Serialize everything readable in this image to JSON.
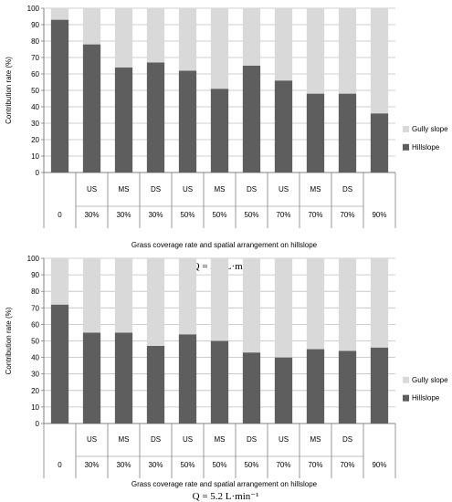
{
  "colors": {
    "hillslope": "#5e5e5e",
    "gully": "#d9d9d9",
    "grid": "#bfbfbf",
    "axis": "#808080"
  },
  "chart_data": [
    {
      "type": "bar",
      "stacked": true,
      "title": "",
      "caption": "Q = 3.2 L·min⁻¹",
      "xlabel": "Grass coverage rate and spatial arrangement on hillslope",
      "ylabel": "Contribution rate (%)",
      "ylim": [
        0,
        100
      ],
      "yticks": [
        "0",
        "10",
        "20",
        "30",
        "40",
        "50",
        "60",
        "70",
        "80",
        "90",
        "100"
      ],
      "grid": true,
      "legend_position": "right",
      "categories_top": [
        "",
        "US",
        "MS",
        "DS",
        "US",
        "MS",
        "DS",
        "US",
        "MS",
        "DS",
        ""
      ],
      "categories_bottom": [
        "0",
        "30%",
        "30%",
        "30%",
        "50%",
        "50%",
        "50%",
        "70%",
        "70%",
        "70%",
        "90%"
      ],
      "series": [
        {
          "name": "Hillslope",
          "values": [
            93,
            78,
            64,
            67,
            62,
            51,
            65,
            56,
            48,
            48,
            36
          ]
        },
        {
          "name": "Gully slope",
          "values": [
            7,
            22,
            36,
            33,
            38,
            49,
            35,
            44,
            52,
            52,
            64
          ]
        }
      ]
    },
    {
      "type": "bar",
      "stacked": true,
      "title": "",
      "caption": "Q = 5.2 L·min⁻¹",
      "xlabel": "Grass coverage rate and spatial arrangement on hillslope",
      "ylabel": "Contribution rate (%)",
      "ylim": [
        0,
        100
      ],
      "yticks": [
        "0",
        "10",
        "20",
        "30",
        "40",
        "50",
        "60",
        "70",
        "80",
        "90",
        "100"
      ],
      "grid": true,
      "legend_position": "right",
      "categories_top": [
        "",
        "US",
        "MS",
        "DS",
        "US",
        "MS",
        "DS",
        "US",
        "MS",
        "DS",
        ""
      ],
      "categories_bottom": [
        "0",
        "30%",
        "30%",
        "30%",
        "50%",
        "50%",
        "50%",
        "70%",
        "70%",
        "70%",
        "90%"
      ],
      "series": [
        {
          "name": "Hillslope",
          "values": [
            72,
            55,
            55,
            47,
            54,
            50,
            43,
            40,
            45,
            44,
            46
          ]
        },
        {
          "name": "Gully slope",
          "values": [
            28,
            45,
            45,
            53,
            46,
            50,
            57,
            60,
            55,
            56,
            54
          ]
        }
      ]
    }
  ]
}
